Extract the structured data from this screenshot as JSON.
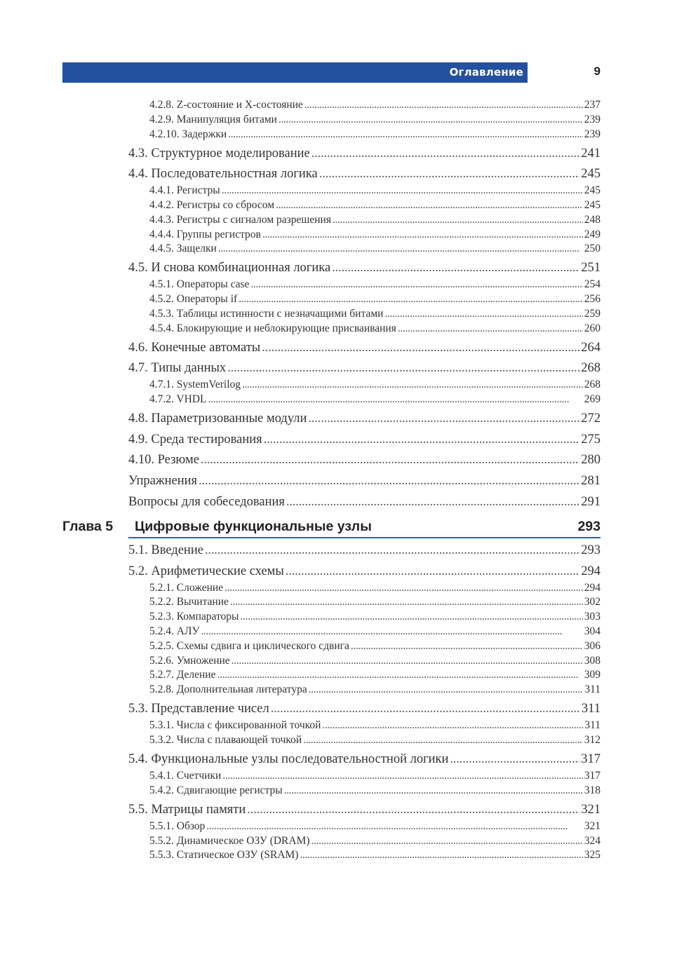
{
  "header": {
    "section_title": "Оглавление",
    "page_number": "9",
    "band_color": "#2450a0"
  },
  "chapter": {
    "label": "Глава 5",
    "title": "Цифровые функциональные узлы",
    "page": "293",
    "rule_color": "#2f62a8"
  },
  "before_chapter": [
    {
      "level": "sub",
      "text": "4.2.8. Z-состояние и X-состояние",
      "page": "237"
    },
    {
      "level": "sub",
      "text": "4.2.9. Манипуляция битами",
      "page": "239"
    },
    {
      "level": "sub",
      "text": "4.2.10. Задержки",
      "page": "239"
    },
    {
      "level": "sec",
      "text": "4.3. Структурное моделирование",
      "page": "241"
    },
    {
      "level": "sec",
      "text": "4.4. Последовательностная логика",
      "page": "245"
    },
    {
      "level": "sub",
      "text": "4.4.1. Регистры",
      "page": "245"
    },
    {
      "level": "sub",
      "text": "4.4.2. Регистры со сбросом",
      "page": "245"
    },
    {
      "level": "sub",
      "text": "4.4.3. Регистры с сигналом разрешения",
      "page": "248"
    },
    {
      "level": "sub",
      "text": "4.4.4. Группы регистров",
      "page": "249"
    },
    {
      "level": "sub",
      "text": "4.4.5. Защелки",
      "page": "250"
    },
    {
      "level": "sec",
      "text": "4.5. И снова комбинационная логика",
      "page": "251"
    },
    {
      "level": "sub",
      "text": "4.5.1. Операторы case",
      "page": "254"
    },
    {
      "level": "sub",
      "text": "4.5.2. Операторы if",
      "page": "256"
    },
    {
      "level": "sub",
      "text": "4.5.3. Таблицы истинности с незначащими битами",
      "page": "259"
    },
    {
      "level": "sub",
      "text": "4.5.4. Блокирующие и неблокирующие присваивания",
      "page": "260"
    },
    {
      "level": "sec",
      "text": "4.6. Конечные автоматы",
      "page": "264"
    },
    {
      "level": "sec",
      "text": "4.7. Типы данных",
      "page": "268"
    },
    {
      "level": "sub",
      "text": "4.7.1. SystemVerilog",
      "page": "268"
    },
    {
      "level": "sub",
      "text": "4.7.2. VHDL",
      "page": "269"
    },
    {
      "level": "sec",
      "text": "4.8. Параметризованные модули",
      "page": "272"
    },
    {
      "level": "sec",
      "text": "4.9. Среда тестирования",
      "page": "275"
    },
    {
      "level": "sec",
      "text": "4.10. Резюме",
      "page": "280"
    },
    {
      "level": "sec",
      "text": "Упражнения",
      "page": "281"
    },
    {
      "level": "sec",
      "text": "Вопросы для собеседования",
      "page": "291"
    }
  ],
  "after_chapter": [
    {
      "level": "sec",
      "text": "5.1. Введение",
      "page": "293"
    },
    {
      "level": "sec",
      "text": "5.2. Арифметические схемы",
      "page": "294"
    },
    {
      "level": "sub",
      "text": "5.2.1. Сложение",
      "page": "294"
    },
    {
      "level": "sub",
      "text": "5.2.2. Вычитание",
      "page": "302"
    },
    {
      "level": "sub",
      "text": "5.2.3. Компараторы",
      "page": "303"
    },
    {
      "level": "sub",
      "text": "5.2.4. АЛУ",
      "page": "304"
    },
    {
      "level": "sub",
      "text": "5.2.5. Схемы сдвига и циклического сдвига",
      "page": "306"
    },
    {
      "level": "sub",
      "text": "5.2.6. Умножение",
      "page": "308"
    },
    {
      "level": "sub",
      "text": "5.2.7. Деление",
      "page": "309"
    },
    {
      "level": "sub",
      "text": "5.2.8. Дополнительная литература",
      "page": "311"
    },
    {
      "level": "sec",
      "text": "5.3. Представление чисел",
      "page": "311"
    },
    {
      "level": "sub",
      "text": "5.3.1. Числа с фиксированной точкой",
      "page": "311"
    },
    {
      "level": "sub",
      "text": "5.3.2. Числа с плавающей точкой",
      "page": "312"
    },
    {
      "level": "sec",
      "text": "5.4. Функциональные узлы последовательностной логики",
      "page": "317"
    },
    {
      "level": "sub",
      "text": "5.4.1. Счетчики",
      "page": "317"
    },
    {
      "level": "sub",
      "text": "5.4.2. Сдвигающие регистры",
      "page": "318"
    },
    {
      "level": "sec",
      "text": "5.5. Матрицы памяти",
      "page": "321"
    },
    {
      "level": "sub",
      "text": "5.5.1. Обзор",
      "page": "321"
    },
    {
      "level": "sub",
      "text": "5.5.2. Динамическое ОЗУ (DRAM)",
      "page": "324"
    },
    {
      "level": "sub",
      "text": "5.5.3. Статическое ОЗУ (SRAM)",
      "page": "325"
    }
  ]
}
